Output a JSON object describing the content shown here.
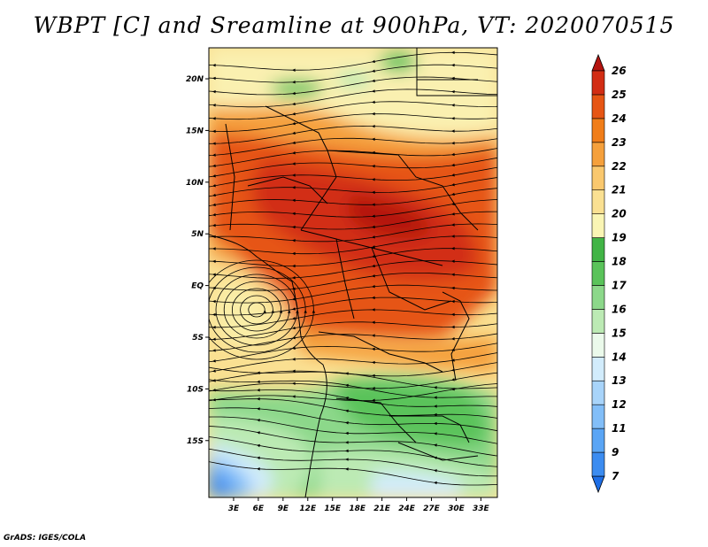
{
  "title": "WBPT [C] and Sreamline at 900hPa, VT: 2020070515",
  "credit": "GrADS: IGES/COLA",
  "map": {
    "variable": "Wet-bulb potential temperature",
    "unit": "C",
    "level": "900hPa",
    "valid_time": "2020070515",
    "lat_range": [
      -20.5,
      23
    ],
    "lon_range": [
      0,
      35
    ],
    "lat_ticks": [
      "20N",
      "15N",
      "10N",
      "5N",
      "EQ",
      "5S",
      "10S",
      "15S"
    ],
    "lon_ticks": [
      "3E",
      "6E",
      "9E",
      "12E",
      "15E",
      "18E",
      "21E",
      "24E",
      "27E",
      "30E",
      "33E"
    ]
  },
  "colorbar": {
    "labels": [
      "7",
      "9",
      "11",
      "12",
      "13",
      "14",
      "15",
      "16",
      "17",
      "18",
      "19",
      "20",
      "21",
      "22",
      "23",
      "24",
      "25",
      "26"
    ],
    "colors": [
      "#1e6ee6",
      "#3c8cf0",
      "#5aa5f5",
      "#82bef8",
      "#a8d4fa",
      "#d2ecfc",
      "#ebfaeb",
      "#bceab4",
      "#8cd88a",
      "#5ac35a",
      "#41b446",
      "#faf5b4",
      "#fae092",
      "#fac86e",
      "#f5a03c",
      "#f07d19",
      "#e65514",
      "#d22d14",
      "#b4140f"
    ]
  }
}
